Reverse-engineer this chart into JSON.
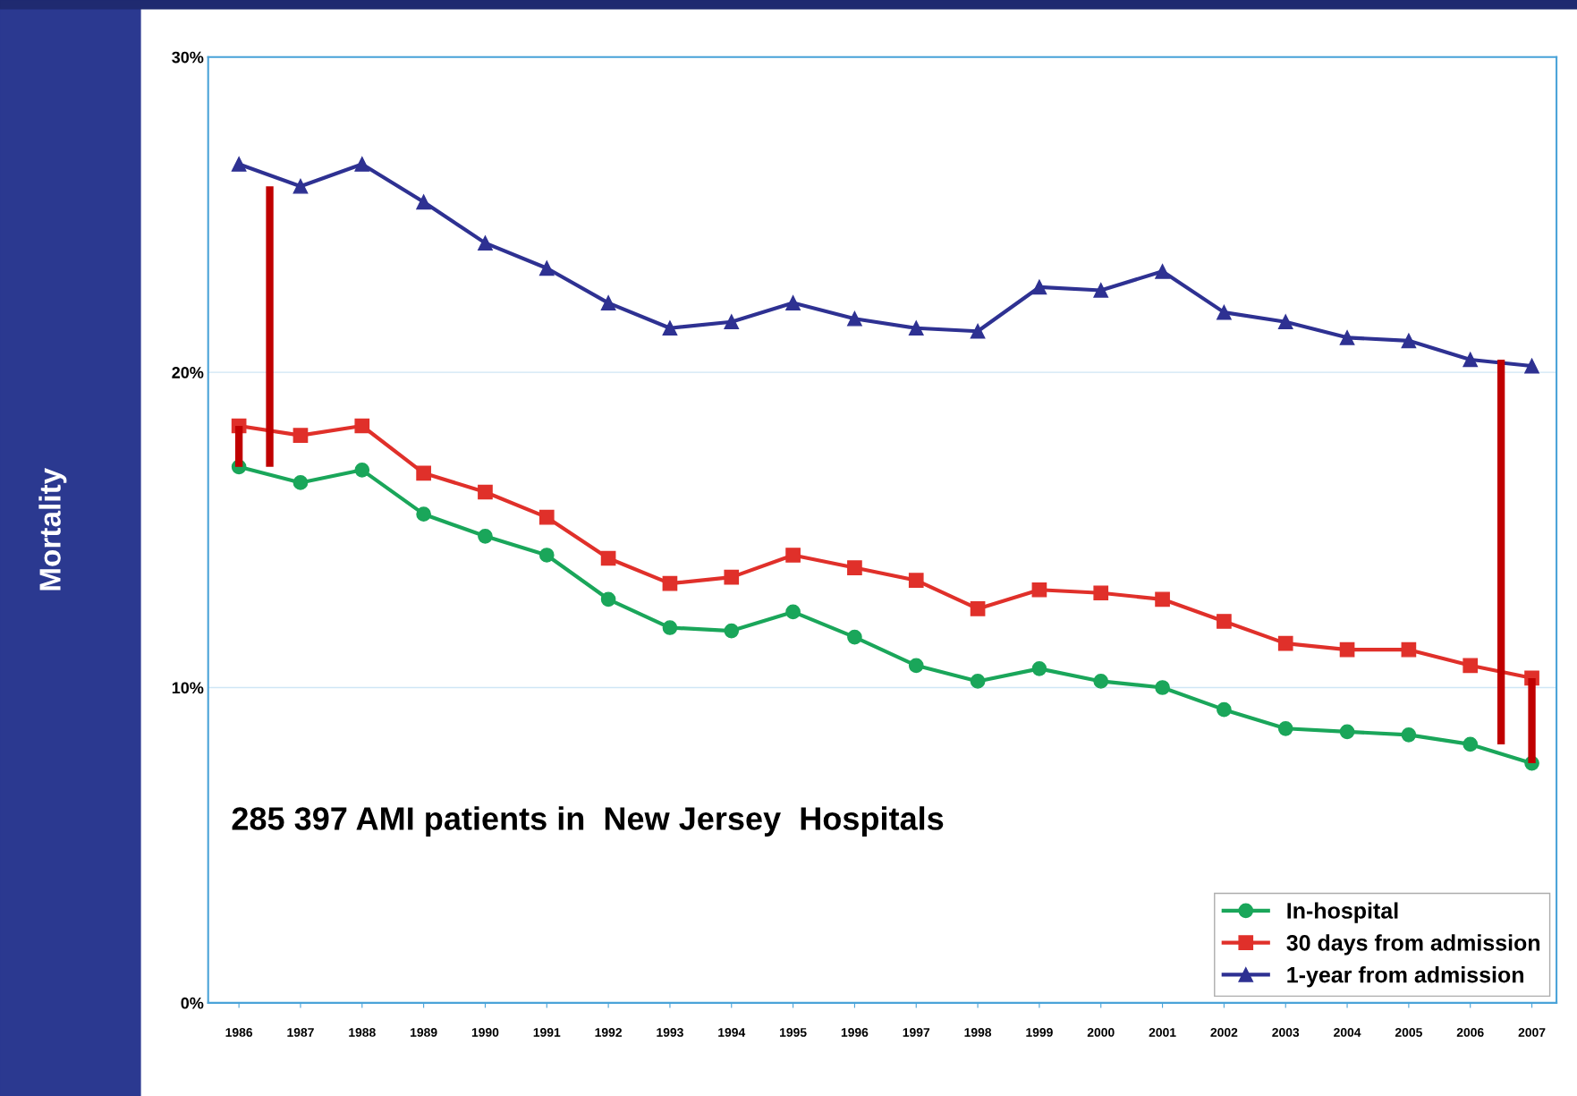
{
  "chart_data": {
    "type": "line",
    "ylabel": "Mortality",
    "categories": [
      "1986",
      "1987",
      "1988",
      "1989",
      "1990",
      "1991",
      "1992",
      "1993",
      "1994",
      "1995",
      "1996",
      "1997",
      "1998",
      "1999",
      "2000",
      "2001",
      "2002",
      "2003",
      "2004",
      "2005",
      "2006",
      "2007"
    ],
    "series": [
      {
        "name": "In-hospital",
        "color": "#1aa65a",
        "marker": "circle",
        "values": [
          17.0,
          16.5,
          16.9,
          15.5,
          14.8,
          14.2,
          12.8,
          11.9,
          11.8,
          12.4,
          11.6,
          10.7,
          10.2,
          10.6,
          10.2,
          10.0,
          9.3,
          8.7,
          8.6,
          8.5,
          8.2,
          7.6
        ]
      },
      {
        "name": "30 days from admission",
        "color": "#e0302a",
        "marker": "square",
        "values": [
          18.3,
          18.0,
          18.3,
          16.8,
          16.2,
          15.4,
          14.1,
          13.3,
          13.5,
          14.2,
          13.8,
          13.4,
          12.5,
          13.1,
          13.0,
          12.8,
          12.1,
          11.4,
          11.2,
          11.2,
          10.7,
          10.3
        ]
      },
      {
        "name": "1-year from admission",
        "color": "#2e3192",
        "marker": "triangle",
        "values": [
          26.6,
          25.9,
          26.6,
          25.4,
          24.1,
          23.3,
          22.2,
          21.4,
          21.6,
          22.2,
          21.7,
          21.4,
          21.3,
          22.7,
          22.6,
          23.2,
          21.9,
          21.6,
          21.1,
          21.0,
          20.4,
          20.2
        ]
      }
    ],
    "ylim": [
      0,
      30
    ],
    "yticks": [
      {
        "value": 0,
        "label": "0%"
      },
      {
        "value": 10,
        "label": "10%"
      },
      {
        "value": 20,
        "label": "20%"
      },
      {
        "value": 30,
        "label": "30%"
      }
    ],
    "grid": "y",
    "legend": "bottom right",
    "line_style": "solid",
    "annotations": [
      {
        "text": "285 397 AMI patients in  New Jersey  Hospitals"
      }
    ]
  }
}
